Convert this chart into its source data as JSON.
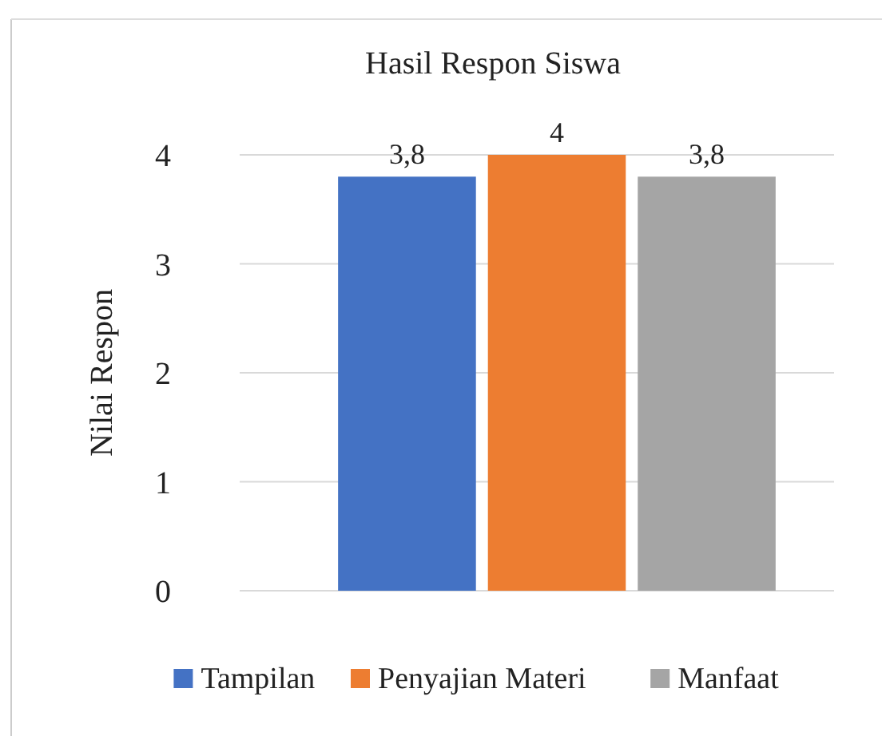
{
  "chart_data": {
    "type": "bar",
    "title": "Hasil Respon Siswa",
    "ylabel": "Nilai Respon",
    "categories": [
      null
    ],
    "series": [
      {
        "name": "Tampilan",
        "color": "#4472c4",
        "values": [
          3.8
        ],
        "value_labels": [
          "3,8"
        ]
      },
      {
        "name": "Penyajian Materi",
        "color": "#ed7d31",
        "values": [
          4
        ],
        "value_labels": [
          "4"
        ]
      },
      {
        "name": "Manfaat",
        "color": "#a5a5a5",
        "values": [
          3.8
        ],
        "value_labels": [
          "3,8"
        ]
      }
    ],
    "ylim": [
      0,
      4
    ],
    "yticks": [
      0,
      1,
      2,
      3,
      4
    ],
    "grid": "y",
    "legend": "bottom"
  }
}
